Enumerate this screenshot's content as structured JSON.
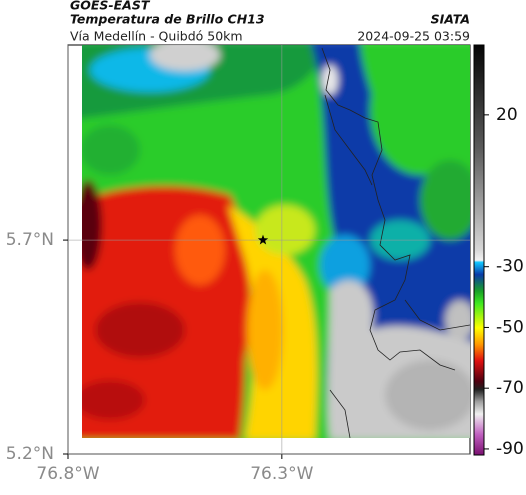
{
  "header": {
    "satellite": "GOES-EAST",
    "product": "Temperatura de Brillo CH13",
    "org": "SIATA",
    "route": "Vía Medellín - Quibdó 50km",
    "datetime": "2024-09-25 03:59"
  },
  "map": {
    "xlim": [
      -76.8,
      -75.86
    ],
    "ylim": [
      5.2,
      6.156
    ],
    "xticks": [
      {
        "value": -76.8,
        "label": "76.8°W"
      },
      {
        "value": -76.3,
        "label": "76.3°W"
      }
    ],
    "yticks": [
      {
        "value": 5.7,
        "label": "5.7°N"
      },
      {
        "value": 5.2,
        "label": "5.2°N"
      }
    ],
    "marker": {
      "lon": -76.344,
      "lat": 5.7
    }
  },
  "colorbar": {
    "clim": [
      -92,
      43
    ],
    "ticks": [
      20,
      -30,
      -50,
      -70,
      -90
    ]
  }
}
